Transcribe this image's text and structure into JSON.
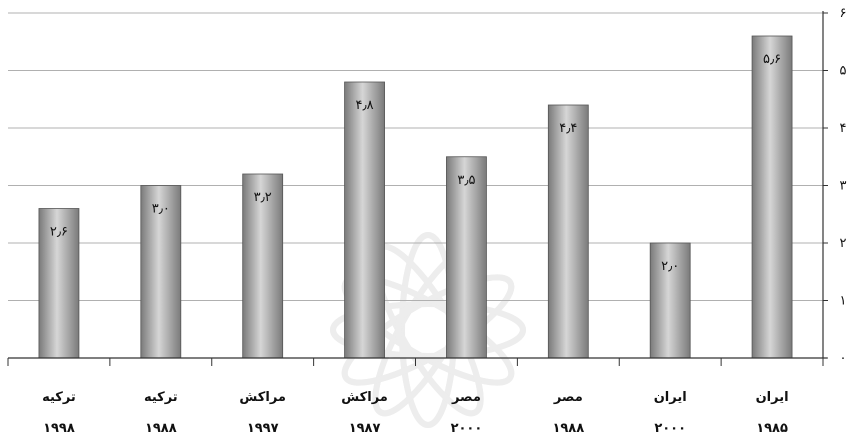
{
  "chart_data": {
    "type": "bar",
    "title": "",
    "xlabel": "",
    "ylabel": "",
    "ylim": [
      0,
      6
    ],
    "grid": true,
    "legend": "none",
    "y_axis_side": "right",
    "category_order": "right-to-left",
    "y_tick_labels": [
      "۰",
      "۱",
      "۲",
      "۳",
      "۴",
      "۵",
      "۶"
    ],
    "categories": [
      {
        "name": "ایران",
        "year": "۱۹۸۵"
      },
      {
        "name": "ایران",
        "year": "۲۰۰۰"
      },
      {
        "name": "مصر",
        "year": "۱۹۸۸"
      },
      {
        "name": "مصر",
        "year": "۲۰۰۰"
      },
      {
        "name": "مراکش",
        "year": "۱۹۸۷"
      },
      {
        "name": "مراکش",
        "year": "۱۹۹۷"
      },
      {
        "name": "ترکیه",
        "year": "۱۹۸۸"
      },
      {
        "name": "ترکیه",
        "year": "۱۹۹۸"
      }
    ],
    "values": [
      5.6,
      2.0,
      4.4,
      3.5,
      4.8,
      3.2,
      3.0,
      2.6
    ],
    "data_labels": [
      "۵٫۶",
      "۲٫۰",
      "۴٫۴",
      "۳٫۵",
      "۴٫۸",
      "۳٫۲",
      "۳٫۰",
      "۲٫۶"
    ],
    "colors": {
      "bar_dark": "#7a7a7a",
      "bar_light": "#d6d6d6",
      "grid": "#b0b0b0",
      "axis": "#333333"
    }
  }
}
